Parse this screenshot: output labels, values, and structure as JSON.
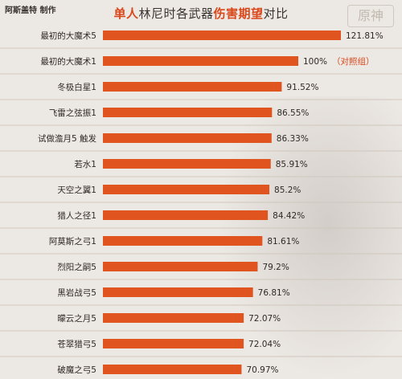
{
  "header": {
    "credit": "阿斯盖特 制作",
    "title_parts": [
      {
        "text": "单人",
        "highlight": true
      },
      {
        "text": "林尼时各武器",
        "highlight": false
      },
      {
        "text": "伤害期望",
        "highlight": true
      },
      {
        "text": "对比",
        "highlight": false
      }
    ],
    "logo_text": "原神"
  },
  "colors": {
    "bar": "#e0541f",
    "highlight": "#d9481b"
  },
  "chart_data": {
    "type": "bar",
    "orientation": "horizontal",
    "categories": [
      "最初的大魔术5",
      "最初的大魔术1",
      "冬极白星1",
      "飞雷之弦振1",
      "试做澹月5 触发",
      "若水1",
      "天空之翼1",
      "猎人之径1",
      "阿莫斯之弓1",
      "烈阳之嗣5",
      "黑岩战弓5",
      "曚云之月5",
      "苍翠猎弓5",
      "破魔之弓5"
    ],
    "values": [
      121.81,
      100,
      91.52,
      86.55,
      86.33,
      85.91,
      85.2,
      84.42,
      81.61,
      79.2,
      76.81,
      72.07,
      72.04,
      70.97
    ],
    "value_labels": [
      "121.81%",
      "100%",
      "91.52%",
      "86.55%",
      "86.33%",
      "85.91%",
      "85.2%",
      "84.42%",
      "81.61%",
      "79.2%",
      "76.81%",
      "72.07%",
      "72.04%",
      "70.97%"
    ],
    "annotations": [
      {
        "category_index": 1,
        "text": "（对照组）"
      }
    ],
    "xlim": [
      0,
      121.81
    ],
    "grid": false
  }
}
